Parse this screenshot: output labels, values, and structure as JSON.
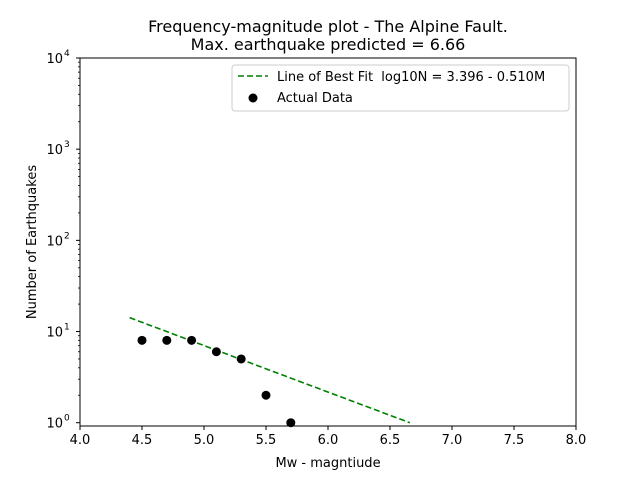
{
  "chart_data": {
    "type": "scatter",
    "title_line1": "Frequency-magnitude plot - The Alpine Fault.",
    "title_line2": "Max. earthquake predicted = 6.66",
    "xlabel": "Mw - magntiude",
    "ylabel": "Number of Earthquakes",
    "xlim": [
      4.0,
      8.0
    ],
    "ylim": [
      0.92,
      10000
    ],
    "yscale": "log",
    "x_ticks": [
      "4.0",
      "4.5",
      "5.0",
      "5.5",
      "6.0",
      "6.5",
      "7.0",
      "7.5",
      "8.0"
    ],
    "y_ticks": [
      {
        "value": 1,
        "base": "10",
        "exp": "0"
      },
      {
        "value": 10,
        "base": "10",
        "exp": "1"
      },
      {
        "value": 100,
        "base": "10",
        "exp": "2"
      },
      {
        "value": 1000,
        "base": "10",
        "exp": "3"
      },
      {
        "value": 10000,
        "base": "10",
        "exp": "4"
      }
    ],
    "grid": false,
    "legend_position": "top-right",
    "series": [
      {
        "name": "Line of Best Fit  log10N = 3.396 - 0.510M",
        "kind": "line",
        "style": "dashed",
        "color": "#008000",
        "intercept": 3.396,
        "slope": -0.51,
        "x_range": [
          4.4,
          6.66
        ]
      },
      {
        "name": "Actual Data",
        "kind": "scatter",
        "color": "#000000",
        "x": [
          4.5,
          4.7,
          4.9,
          5.1,
          5.3,
          5.5,
          5.7
        ],
        "y": [
          8,
          8,
          8,
          6,
          5,
          2,
          1
        ]
      }
    ]
  }
}
